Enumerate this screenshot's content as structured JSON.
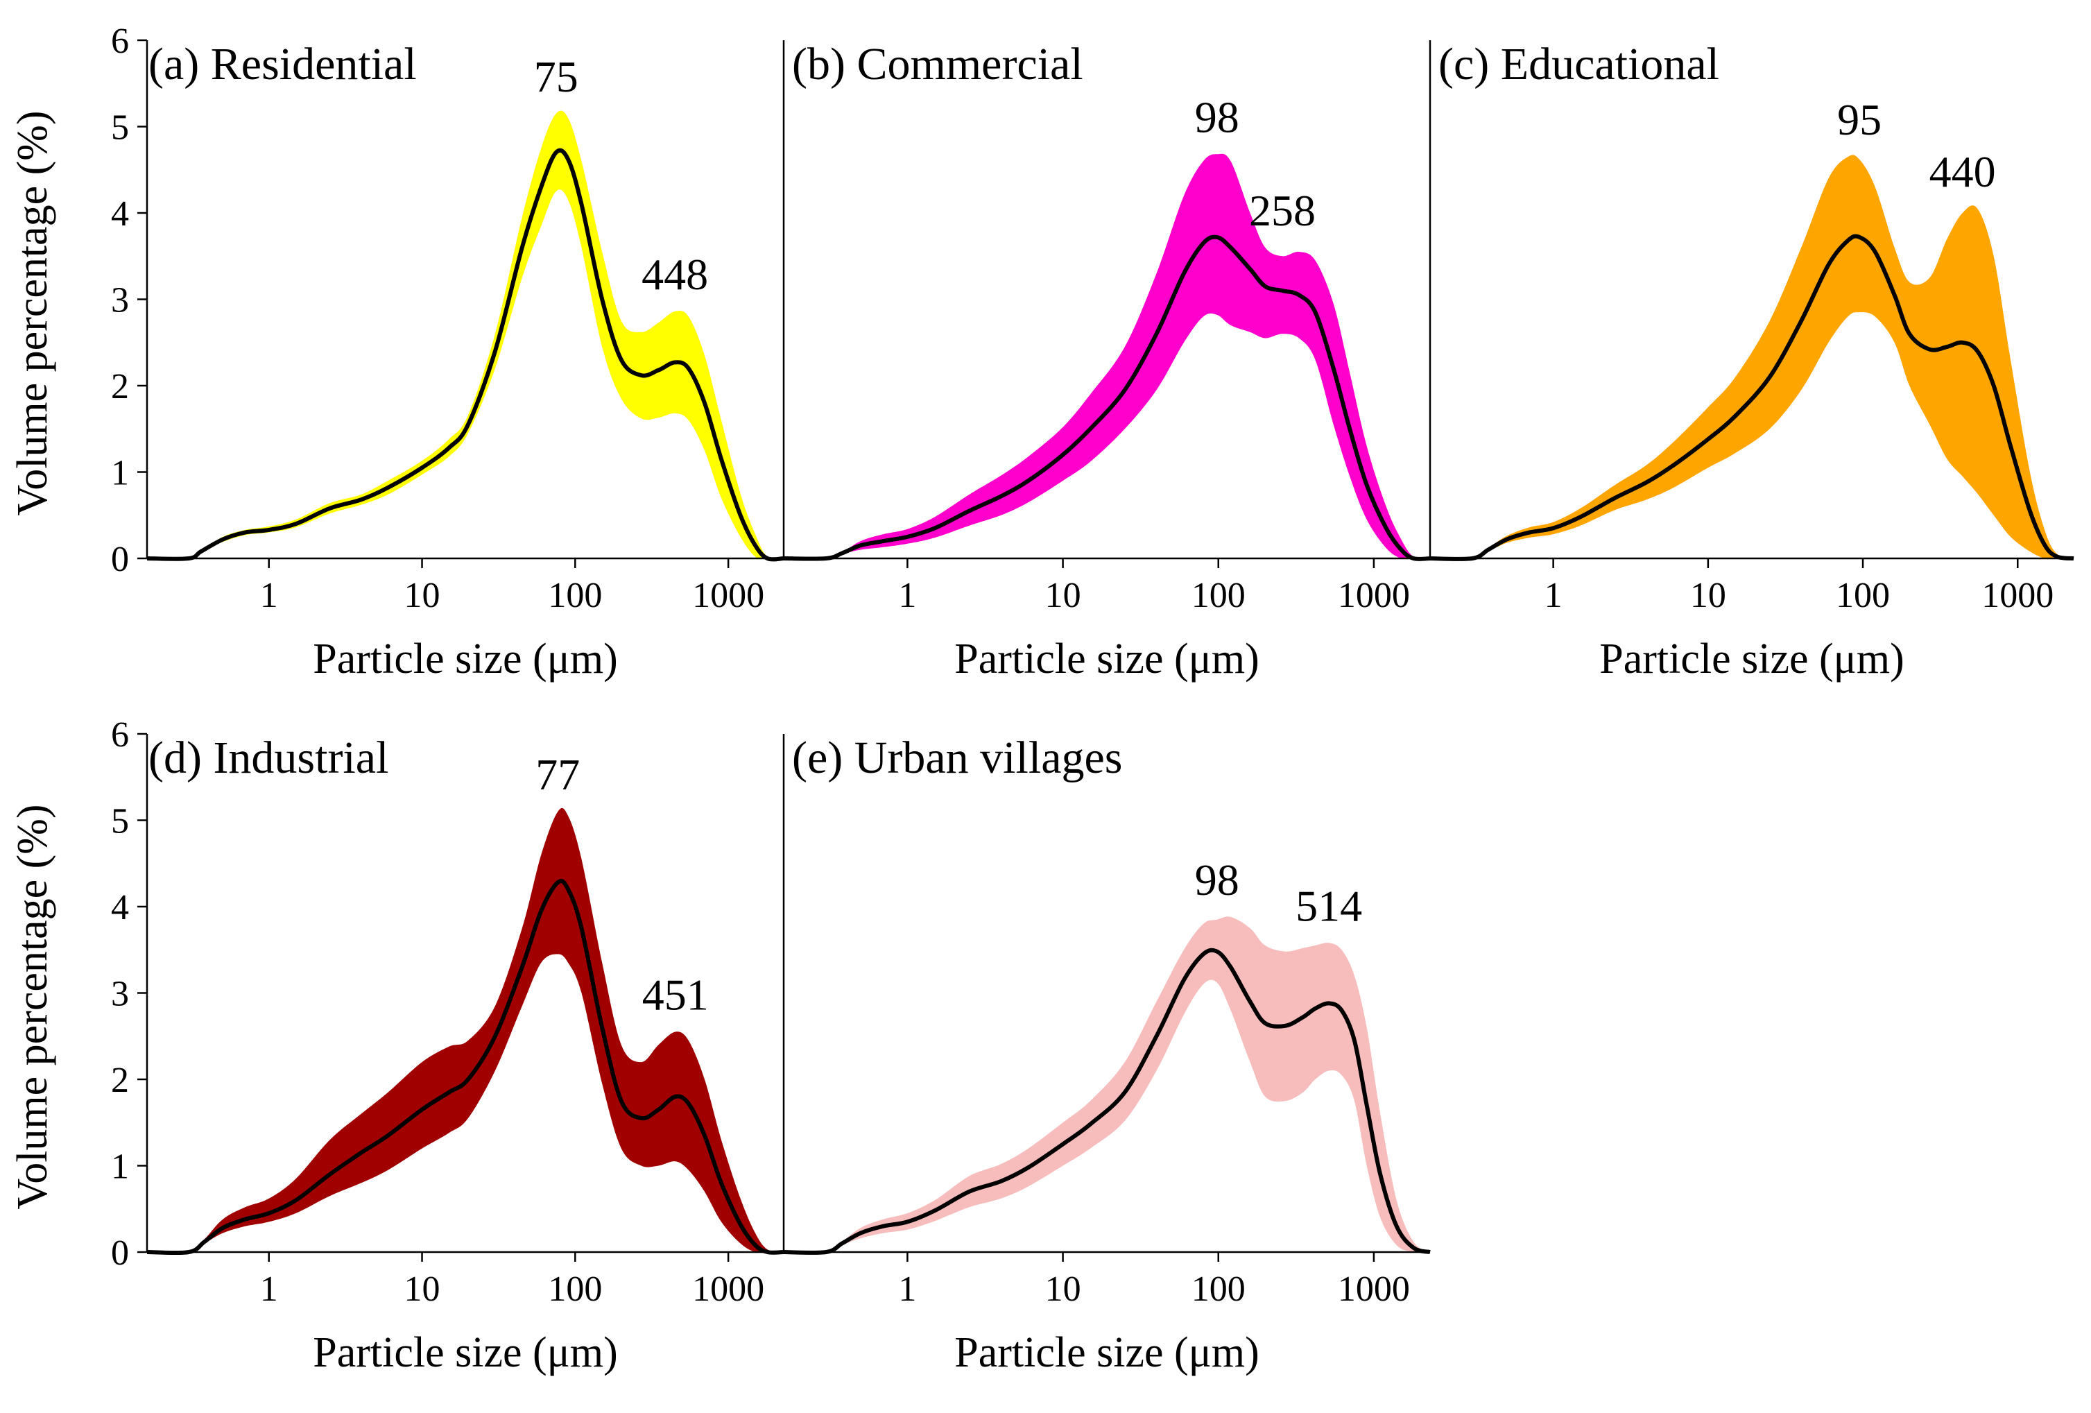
{
  "chart_data": [
    {
      "type": "area",
      "title": "(a) Residential",
      "xlabel": "Particle size (μm)",
      "ylabel": "Volume percentage (%)",
      "xscale": "log",
      "xlim": [
        0.16,
        2300
      ],
      "ylim": [
        0,
        6
      ],
      "yticks": [
        0,
        1,
        2,
        3,
        4,
        5,
        6
      ],
      "xticks": [
        1,
        10,
        100,
        1000
      ],
      "xtick_labels": [
        "1",
        "10",
        "100",
        "1000"
      ],
      "band_color": "#ffff00",
      "line_color": "#000000",
      "peaks": [
        {
          "label": "75",
          "x": 75,
          "y": 4.7
        },
        {
          "label": "448",
          "x": 448,
          "y": 2.27
        }
      ],
      "x": [
        0.16,
        0.3,
        0.36,
        0.5,
        0.7,
        1.0,
        1.5,
        2.5,
        4,
        6,
        10,
        15,
        20,
        30,
        45,
        60,
        75,
        90,
        110,
        150,
        200,
        270,
        350,
        448,
        550,
        700,
        900,
        1200,
        1500,
        1800,
        2300
      ],
      "mean": [
        0,
        0,
        0.08,
        0.22,
        0.3,
        0.33,
        0.4,
        0.58,
        0.68,
        0.82,
        1.05,
        1.28,
        1.55,
        2.4,
        3.6,
        4.3,
        4.7,
        4.62,
        4.1,
        3.0,
        2.3,
        2.12,
        2.18,
        2.27,
        2.2,
        1.8,
        1.15,
        0.5,
        0.15,
        0.0,
        0.0
      ],
      "upper": [
        0,
        0,
        0.09,
        0.25,
        0.33,
        0.37,
        0.45,
        0.64,
        0.74,
        0.9,
        1.13,
        1.38,
        1.66,
        2.6,
        3.95,
        4.75,
        5.15,
        5.1,
        4.6,
        3.55,
        2.75,
        2.62,
        2.73,
        2.86,
        2.8,
        2.35,
        1.6,
        0.75,
        0.28,
        0.02,
        0.0
      ],
      "lower": [
        0,
        0,
        0.07,
        0.19,
        0.27,
        0.3,
        0.36,
        0.52,
        0.62,
        0.74,
        0.97,
        1.18,
        1.45,
        2.2,
        3.25,
        3.85,
        4.25,
        4.15,
        3.6,
        2.45,
        1.85,
        1.62,
        1.63,
        1.68,
        1.6,
        1.25,
        0.7,
        0.25,
        0.02,
        0.0,
        0.0
      ]
    },
    {
      "type": "area",
      "title": "(b) Commercial",
      "xlabel": "Particle size (μm)",
      "ylabel": "",
      "xscale": "log",
      "xlim": [
        0.16,
        2300
      ],
      "ylim": [
        0,
        6
      ],
      "xticks": [
        1,
        10,
        100,
        1000
      ],
      "xtick_labels": [
        "1",
        "10",
        "100",
        "1000"
      ],
      "band_color": "#ff00cc",
      "line_color": "#000000",
      "peaks": [
        {
          "label": "98",
          "x": 98,
          "y": 3.72
        },
        {
          "label": "258",
          "x": 258,
          "y": 3.1
        }
      ],
      "x": [
        0.16,
        0.3,
        0.38,
        0.5,
        0.7,
        1.0,
        1.5,
        2.5,
        4,
        6,
        10,
        15,
        25,
        40,
        60,
        80,
        98,
        120,
        160,
        200,
        258,
        330,
        420,
        550,
        700,
        900,
        1200,
        1500,
        1800,
        2300
      ],
      "mean": [
        0,
        0,
        0.06,
        0.15,
        0.2,
        0.25,
        0.35,
        0.55,
        0.72,
        0.9,
        1.2,
        1.5,
        1.95,
        2.6,
        3.3,
        3.65,
        3.72,
        3.6,
        3.35,
        3.15,
        3.1,
        3.05,
        2.85,
        2.2,
        1.5,
        0.85,
        0.35,
        0.1,
        0.0,
        0.0
      ],
      "upper": [
        0,
        0,
        0.07,
        0.2,
        0.28,
        0.34,
        0.48,
        0.74,
        0.96,
        1.18,
        1.52,
        1.9,
        2.45,
        3.3,
        4.2,
        4.6,
        4.68,
        4.6,
        4.0,
        3.6,
        3.5,
        3.55,
        3.45,
        2.95,
        2.15,
        1.3,
        0.6,
        0.22,
        0.02,
        0.0
      ],
      "lower": [
        0,
        0,
        0.05,
        0.1,
        0.13,
        0.17,
        0.24,
        0.38,
        0.5,
        0.65,
        0.9,
        1.12,
        1.5,
        1.95,
        2.5,
        2.8,
        2.82,
        2.7,
        2.62,
        2.55,
        2.6,
        2.55,
        2.3,
        1.55,
        0.95,
        0.45,
        0.12,
        0.0,
        0.0,
        0.0
      ]
    },
    {
      "type": "area",
      "title": "(c) Educational",
      "xlabel": "Particle size (μm)",
      "ylabel": "",
      "xscale": "log",
      "xlim": [
        0.16,
        2300
      ],
      "ylim": [
        0,
        6
      ],
      "xticks": [
        1,
        10,
        100,
        1000
      ],
      "xtick_labels": [
        "1",
        "10",
        "100",
        "1000"
      ],
      "band_color": "#ffa500",
      "line_color": "#000000",
      "peaks": [
        {
          "label": "95",
          "x": 95,
          "y": 3.72
        },
        {
          "label": "440",
          "x": 440,
          "y": 2.5
        }
      ],
      "x": [
        0.16,
        0.3,
        0.38,
        0.5,
        0.7,
        1.0,
        1.5,
        2.5,
        4,
        6,
        10,
        15,
        25,
        40,
        60,
        80,
        95,
        120,
        160,
        200,
        270,
        350,
        440,
        550,
        700,
        900,
        1200,
        1500,
        1800,
        2300
      ],
      "mean": [
        0,
        0,
        0.1,
        0.22,
        0.3,
        0.35,
        0.48,
        0.7,
        0.88,
        1.08,
        1.38,
        1.65,
        2.1,
        2.75,
        3.4,
        3.68,
        3.72,
        3.55,
        3.05,
        2.6,
        2.42,
        2.45,
        2.5,
        2.4,
        2.0,
        1.3,
        0.55,
        0.15,
        0.02,
        0.0
      ],
      "upper": [
        0,
        0,
        0.12,
        0.26,
        0.36,
        0.42,
        0.58,
        0.85,
        1.08,
        1.35,
        1.75,
        2.1,
        2.75,
        3.6,
        4.4,
        4.65,
        4.62,
        4.3,
        3.6,
        3.2,
        3.25,
        3.7,
        4.0,
        4.05,
        3.5,
        2.3,
        1.0,
        0.32,
        0.05,
        0.0
      ],
      "lower": [
        0,
        0,
        0.08,
        0.18,
        0.24,
        0.28,
        0.38,
        0.56,
        0.68,
        0.82,
        1.05,
        1.22,
        1.5,
        1.95,
        2.5,
        2.8,
        2.85,
        2.8,
        2.5,
        2.0,
        1.55,
        1.15,
        0.95,
        0.75,
        0.5,
        0.25,
        0.08,
        0.0,
        0.0,
        0.0
      ]
    },
    {
      "type": "area",
      "title": "(d) Industrial",
      "xlabel": "Particle size (μm)",
      "ylabel": "Volume percentage (%)",
      "xscale": "log",
      "xlim": [
        0.16,
        2300
      ],
      "ylim": [
        0,
        6
      ],
      "yticks": [
        0,
        1,
        2,
        3,
        4,
        5,
        6
      ],
      "xticks": [
        1,
        10,
        100,
        1000
      ],
      "xtick_labels": [
        "1",
        "10",
        "100",
        "1000"
      ],
      "band_color": "#a00000",
      "line_color": "#000000",
      "peaks": [
        {
          "label": "77",
          "x": 77,
          "y": 4.28
        },
        {
          "label": "451",
          "x": 451,
          "y": 1.8
        }
      ],
      "x": [
        0.16,
        0.3,
        0.38,
        0.5,
        0.7,
        1.0,
        1.5,
        2.5,
        4,
        6,
        10,
        15,
        20,
        30,
        45,
        60,
        77,
        90,
        110,
        150,
        200,
        270,
        350,
        451,
        550,
        700,
        900,
        1200,
        1500,
        1800,
        2300
      ],
      "mean": [
        0,
        0,
        0.12,
        0.28,
        0.38,
        0.45,
        0.6,
        0.9,
        1.15,
        1.35,
        1.65,
        1.85,
        2.0,
        2.5,
        3.3,
        3.95,
        4.28,
        4.2,
        3.75,
        2.6,
        1.75,
        1.55,
        1.65,
        1.8,
        1.72,
        1.35,
        0.8,
        0.32,
        0.08,
        0.0,
        0.0
      ],
      "upper": [
        0,
        0,
        0.15,
        0.38,
        0.52,
        0.62,
        0.85,
        1.3,
        1.6,
        1.85,
        2.2,
        2.38,
        2.45,
        2.85,
        3.75,
        4.6,
        5.1,
        5.05,
        4.55,
        3.35,
        2.4,
        2.2,
        2.4,
        2.55,
        2.45,
        2.0,
        1.3,
        0.62,
        0.22,
        0.03,
        0.0
      ],
      "lower": [
        0,
        0,
        0.1,
        0.22,
        0.3,
        0.35,
        0.45,
        0.65,
        0.8,
        0.95,
        1.2,
        1.38,
        1.55,
        2.1,
        2.85,
        3.35,
        3.45,
        3.35,
        3.0,
        1.95,
        1.2,
        1.0,
        1.0,
        1.05,
        0.95,
        0.7,
        0.35,
        0.1,
        0.0,
        0.0,
        0.0
      ]
    },
    {
      "type": "area",
      "title": "(e) Urban villages",
      "xlabel": "Particle size (μm)",
      "ylabel": "",
      "xscale": "log",
      "xlim": [
        0.16,
        2300
      ],
      "ylim": [
        0,
        6
      ],
      "xticks": [
        1,
        10,
        100,
        1000
      ],
      "xtick_labels": [
        "1",
        "10",
        "100",
        "1000"
      ],
      "band_color": "#f7bcbc",
      "line_color": "#000000",
      "peaks": [
        {
          "label": "98",
          "x": 98,
          "y": 3.48
        },
        {
          "label": "514",
          "x": 514,
          "y": 2.88
        }
      ],
      "x": [
        0.16,
        0.3,
        0.38,
        0.5,
        0.7,
        1.0,
        1.5,
        2.5,
        4,
        6,
        10,
        15,
        25,
        40,
        60,
        80,
        98,
        120,
        160,
        200,
        270,
        350,
        420,
        514,
        620,
        750,
        900,
        1100,
        1400,
        1800,
        2300
      ],
      "mean": [
        0,
        0,
        0.1,
        0.22,
        0.3,
        0.35,
        0.48,
        0.7,
        0.82,
        0.98,
        1.25,
        1.48,
        1.85,
        2.5,
        3.15,
        3.45,
        3.48,
        3.3,
        2.9,
        2.65,
        2.62,
        2.72,
        2.82,
        2.88,
        2.8,
        2.45,
        1.7,
        0.9,
        0.3,
        0.05,
        0.0
      ],
      "upper": [
        0,
        0,
        0.12,
        0.28,
        0.38,
        0.45,
        0.6,
        0.88,
        1.02,
        1.2,
        1.5,
        1.75,
        2.2,
        2.9,
        3.5,
        3.8,
        3.85,
        3.88,
        3.75,
        3.55,
        3.48,
        3.52,
        3.55,
        3.58,
        3.5,
        3.2,
        2.6,
        1.6,
        0.6,
        0.12,
        0.0
      ],
      "lower": [
        0,
        0,
        0.08,
        0.16,
        0.22,
        0.26,
        0.36,
        0.52,
        0.62,
        0.76,
        1.0,
        1.2,
        1.52,
        2.1,
        2.75,
        3.1,
        3.12,
        2.8,
        2.2,
        1.8,
        1.75,
        1.85,
        2.0,
        2.1,
        2.05,
        1.75,
        1.0,
        0.4,
        0.08,
        0.0,
        0.0
      ]
    }
  ]
}
